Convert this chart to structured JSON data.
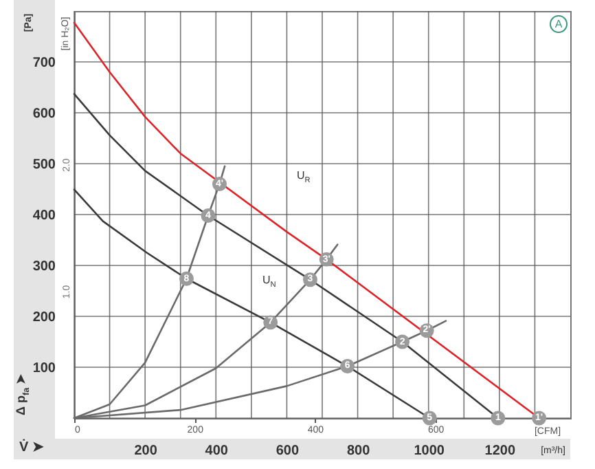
{
  "chart_data": {
    "type": "line",
    "xlabel": "[m³/h]",
    "ylabel": "[Pa]",
    "x2label": "[CFM]",
    "y2label": "[in H₂O]",
    "xlim": [
      0,
      1400
    ],
    "xticks": [
      {
        "value": 0,
        "label": null
      },
      {
        "value": 100,
        "label": null
      },
      200,
      {
        "value": 300,
        "label": null
      },
      400,
      {
        "value": 500,
        "label": null
      },
      600,
      {
        "value": 700,
        "label": null
      },
      800,
      {
        "value": 900,
        "label": null
      },
      1000,
      {
        "value": 1100,
        "label": null
      },
      1200,
      {
        "value": 1300,
        "label": null
      }
    ],
    "ylim": [
      0,
      800
    ],
    "yticks": [
      {
        "value": 0,
        "label": null
      },
      100,
      200,
      300,
      400,
      500,
      600,
      700
    ],
    "x2lim": [
      0,
      824
    ],
    "x2ticks": [
      0,
      200,
      400,
      600
    ],
    "y2lim": [
      0,
      3.21
    ],
    "y2ticks": [
      {
        "value": 1,
        "label": "1.0"
      },
      {
        "value": 2,
        "label": "2.0"
      }
    ],
    "grid": true,
    "series": [
      {
        "color": "#d9262b",
        "x": [
          0,
          100,
          200,
          300,
          600,
          712,
          1312
        ],
        "values": [
          777,
          680,
          592,
          520,
          366,
          312,
          0
        ]
      },
      {
        "color": "#3a3a3a",
        "x": [
          0,
          100,
          200,
          378,
          666,
          926,
          1196
        ],
        "values": [
          637,
          556,
          486,
          398,
          272,
          150,
          0
        ]
      },
      {
        "color": "#3a3a3a",
        "x": [
          0,
          81,
          205,
          317,
          554,
          771,
          1003
        ],
        "values": [
          449,
          387,
          325,
          274,
          188,
          102,
          0
        ]
      },
      {
        "color": "#6a6a6a",
        "x": [
          0,
          100,
          200,
          317,
          378,
          410,
          425
        ],
        "values": [
          0,
          27,
          109,
          274,
          398,
          460,
          495
        ]
      },
      {
        "color": "#6a6a6a",
        "x": [
          0,
          200,
          400,
          554,
          666,
          712,
          743
        ],
        "values": [
          0,
          25,
          98,
          188,
          272,
          312,
          341
        ]
      },
      {
        "color": "#6a6a6a",
        "x": [
          0,
          300,
          600,
          771,
          926,
          995,
          1049
        ],
        "values": [
          0,
          16,
          63,
          102,
          150,
          172,
          191
        ]
      },
      {
        "type": "scatter",
        "color": "#9b9b9b",
        "marker": "circle",
        "x": [
          1312,
          995,
          712,
          410,
          1196,
          926,
          666,
          378,
          1003,
          771,
          554,
          317
        ],
        "values": [
          0,
          172,
          312,
          460,
          0,
          150,
          272,
          398,
          0,
          102,
          188,
          274
        ]
      }
    ],
    "annotations": [
      {
        "text": "1'",
        "x": 1312,
        "y": 0
      },
      {
        "text": "2'",
        "x": 995,
        "y": 172
      },
      {
        "text": "3'",
        "x": 712,
        "y": 312
      },
      {
        "text": "4'",
        "x": 410,
        "y": 460
      },
      {
        "text": "1",
        "x": 1196,
        "y": 0
      },
      {
        "text": "2",
        "x": 926,
        "y": 150
      },
      {
        "text": "3",
        "x": 666,
        "y": 272
      },
      {
        "text": "4",
        "x": 378,
        "y": 398
      },
      {
        "text": "5",
        "x": 1003,
        "y": 0
      },
      {
        "text": "6",
        "x": 771,
        "y": 102
      },
      {
        "text": "7",
        "x": 554,
        "y": 188
      },
      {
        "text": "8",
        "x": 317,
        "y": 274
      },
      "U$_{R}$",
      "U$_{N}$",
      "Δ p$_{fa}$ ➤",
      "V̇ ➤",
      "A"
    ]
  }
}
